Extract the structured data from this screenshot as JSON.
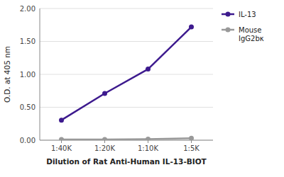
{
  "chart_data": {
    "type": "line",
    "x_label": "Dilution of Rat Anti-Human IL-13-BIOT",
    "y_label": "O.D. at 405 nm",
    "categories": [
      "1:40K",
      "1:20K",
      "1:10K",
      "1:5K"
    ],
    "series": [
      {
        "name": "IL-13",
        "color": "#3d1a8e",
        "marker": "circle",
        "values": [
          0.305,
          0.71,
          1.08,
          1.72
        ]
      },
      {
        "name": "Mouse\nIgG2bκ",
        "color": "#999999",
        "marker": "circle",
        "values": [
          0.01,
          0.01,
          0.015,
          0.03
        ]
      }
    ],
    "ylim": [
      0.0,
      2.0
    ],
    "yticks": [
      {
        "value": 0.0,
        "label": "0.00"
      },
      {
        "value": 0.5,
        "label": "0.50"
      },
      {
        "value": 1.0,
        "label": "1.00"
      },
      {
        "value": 1.5,
        "label": "1.50"
      },
      {
        "value": 2.0,
        "label": "2.00"
      }
    ],
    "grid": true,
    "legend": "right"
  }
}
